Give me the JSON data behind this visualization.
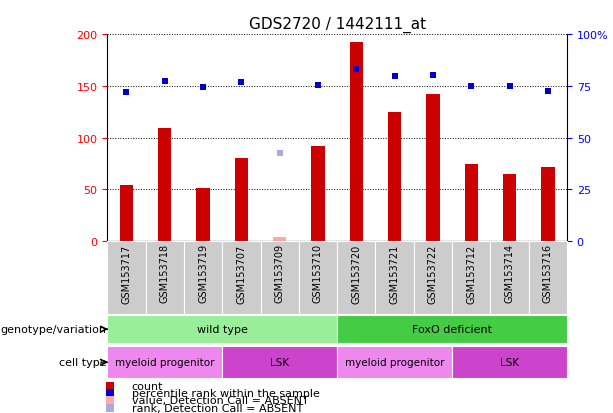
{
  "title": "GDS2720 / 1442111_at",
  "samples": [
    "GSM153717",
    "GSM153718",
    "GSM153719",
    "GSM153707",
    "GSM153709",
    "GSM153710",
    "GSM153720",
    "GSM153721",
    "GSM153722",
    "GSM153712",
    "GSM153714",
    "GSM153716"
  ],
  "count_values": [
    54,
    109,
    51,
    80,
    4,
    92,
    192,
    125,
    142,
    75,
    65,
    72
  ],
  "count_absent": [
    false,
    false,
    false,
    false,
    true,
    false,
    false,
    false,
    false,
    false,
    false,
    false
  ],
  "rank_values": [
    144,
    155,
    149,
    154,
    85,
    151,
    166,
    160,
    161,
    150,
    150,
    145
  ],
  "rank_absent": [
    false,
    false,
    false,
    false,
    true,
    false,
    false,
    false,
    false,
    false,
    false,
    false
  ],
  "ylim_left": [
    0,
    200
  ],
  "ylim_right": [
    0,
    100
  ],
  "yticks_left": [
    0,
    50,
    100,
    150,
    200
  ],
  "yticks_right": [
    0,
    25,
    50,
    75,
    100
  ],
  "ytick_labels_right": [
    "0",
    "25",
    "50",
    "75",
    "100%"
  ],
  "bar_color": "#cc0000",
  "bar_absent_color": "#ffaaaa",
  "rank_color": "#0000cc",
  "rank_absent_color": "#aaaadd",
  "bg_color": "#ffffff",
  "plot_bg_color": "#ffffff",
  "xtick_bg_color": "#cccccc",
  "genotype_groups": [
    {
      "label": "wild type",
      "start": 0,
      "end": 6,
      "color": "#99ee99"
    },
    {
      "label": "FoxO deficient",
      "start": 6,
      "end": 12,
      "color": "#44cc44"
    }
  ],
  "celltype_groups": [
    {
      "label": "myeloid progenitor",
      "start": 0,
      "end": 3,
      "color": "#ee88ee"
    },
    {
      "label": "LSK",
      "start": 3,
      "end": 6,
      "color": "#cc44cc"
    },
    {
      "label": "myeloid progenitor",
      "start": 6,
      "end": 9,
      "color": "#ee88ee"
    },
    {
      "label": "LSK",
      "start": 9,
      "end": 12,
      "color": "#cc44cc"
    }
  ],
  "legend_items": [
    {
      "label": "count",
      "color": "#cc0000"
    },
    {
      "label": "percentile rank within the sample",
      "color": "#0000cc"
    },
    {
      "label": "value, Detection Call = ABSENT",
      "color": "#ffaaaa"
    },
    {
      "label": "rank, Detection Call = ABSENT",
      "color": "#aaaadd"
    }
  ],
  "genotype_label": "genotype/variation",
  "celltype_label": "cell type",
  "bar_width": 0.35
}
